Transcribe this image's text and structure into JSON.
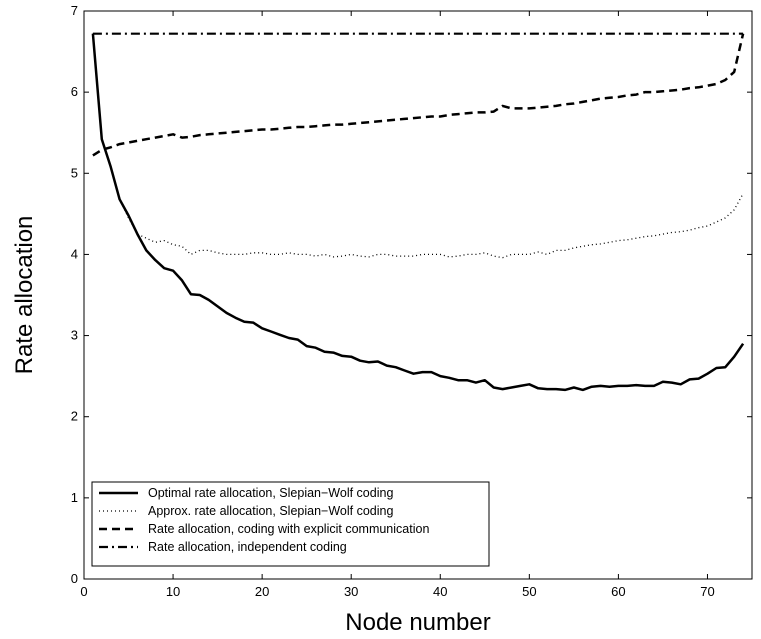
{
  "chart_data": {
    "type": "line",
    "title": "",
    "xlabel": "Node number",
    "ylabel": "Rate allocation",
    "xlim": [
      0,
      75
    ],
    "ylim": [
      0,
      7
    ],
    "xticks": [
      "0",
      "10",
      "20",
      "30",
      "40",
      "50",
      "60",
      "70"
    ],
    "yticks": [
      "0",
      "1",
      "2",
      "3",
      "4",
      "5",
      "6",
      "7"
    ],
    "grid": false,
    "legend_position": "bottom-left",
    "x": [
      1,
      2,
      3,
      4,
      5,
      6,
      7,
      8,
      9,
      10,
      11,
      12,
      13,
      14,
      15,
      16,
      17,
      18,
      19,
      20,
      21,
      22,
      23,
      24,
      25,
      26,
      27,
      28,
      29,
      30,
      31,
      32,
      33,
      34,
      35,
      36,
      37,
      38,
      39,
      40,
      41,
      42,
      43,
      44,
      45,
      46,
      47,
      48,
      49,
      50,
      51,
      52,
      53,
      54,
      55,
      56,
      57,
      58,
      59,
      60,
      61,
      62,
      63,
      64,
      65,
      66,
      67,
      68,
      69,
      70,
      71,
      72,
      73,
      74
    ],
    "series": [
      {
        "name": "Optimal rate allocation, Slepian−Wolf coding",
        "line_style": "solid",
        "values": [
          6.72,
          5.42,
          5.08,
          4.68,
          4.48,
          4.25,
          4.05,
          3.93,
          3.83,
          3.8,
          3.68,
          3.51,
          3.5,
          3.44,
          3.36,
          3.28,
          3.22,
          3.17,
          3.16,
          3.09,
          3.05,
          3.01,
          2.97,
          2.95,
          2.87,
          2.85,
          2.8,
          2.79,
          2.75,
          2.74,
          2.69,
          2.67,
          2.68,
          2.63,
          2.61,
          2.57,
          2.53,
          2.55,
          2.55,
          2.5,
          2.48,
          2.45,
          2.45,
          2.42,
          2.45,
          2.36,
          2.34,
          2.36,
          2.38,
          2.4,
          2.35,
          2.34,
          2.34,
          2.33,
          2.36,
          2.33,
          2.37,
          2.38,
          2.37,
          2.38,
          2.38,
          2.39,
          2.38,
          2.38,
          2.43,
          2.42,
          2.4,
          2.46,
          2.47,
          2.53,
          2.6,
          2.61,
          2.74,
          2.9
        ]
      },
      {
        "name": "Approx. rate allocation, Slepian−Wolf coding",
        "line_style": "dotted",
        "values": [
          6.72,
          5.42,
          5.08,
          4.68,
          4.45,
          4.25,
          4.2,
          4.15,
          4.17,
          4.12,
          4.1,
          4.0,
          4.05,
          4.05,
          4.02,
          4.0,
          4.0,
          4.0,
          4.02,
          4.02,
          4.0,
          4.0,
          4.02,
          4.0,
          4.0,
          3.98,
          4.0,
          3.97,
          3.98,
          4.0,
          3.98,
          3.97,
          4.0,
          4.0,
          3.98,
          3.98,
          3.98,
          4.0,
          4.0,
          4.0,
          3.97,
          3.98,
          4.0,
          4.0,
          4.02,
          3.98,
          3.96,
          4.0,
          4.0,
          4.0,
          4.03,
          4.0,
          4.05,
          4.05,
          4.08,
          4.1,
          4.12,
          4.13,
          4.15,
          4.17,
          4.18,
          4.2,
          4.22,
          4.23,
          4.25,
          4.27,
          4.28,
          4.3,
          4.33,
          4.35,
          4.4,
          4.45,
          4.55,
          4.75
        ]
      },
      {
        "name": "Rate allocation, coding with explicit communication",
        "line_style": "dashed",
        "values": [
          5.22,
          5.29,
          5.32,
          5.36,
          5.38,
          5.4,
          5.42,
          5.44,
          5.46,
          5.48,
          5.44,
          5.45,
          5.47,
          5.48,
          5.49,
          5.5,
          5.51,
          5.52,
          5.53,
          5.54,
          5.54,
          5.55,
          5.56,
          5.57,
          5.57,
          5.58,
          5.59,
          5.6,
          5.6,
          5.61,
          5.62,
          5.63,
          5.64,
          5.65,
          5.66,
          5.67,
          5.68,
          5.69,
          5.7,
          5.7,
          5.72,
          5.73,
          5.74,
          5.75,
          5.75,
          5.76,
          5.83,
          5.8,
          5.8,
          5.8,
          5.81,
          5.82,
          5.83,
          5.85,
          5.86,
          5.88,
          5.9,
          5.92,
          5.93,
          5.94,
          5.96,
          5.97,
          6.0,
          6.0,
          6.01,
          6.02,
          6.03,
          6.05,
          6.06,
          6.08,
          6.1,
          6.15,
          6.25,
          6.72
        ]
      },
      {
        "name": "Rate allocation, independent coding",
        "line_style": "dashdot",
        "values": [
          6.72,
          6.72,
          6.72,
          6.72,
          6.72,
          6.72,
          6.72,
          6.72,
          6.72,
          6.72,
          6.72,
          6.72,
          6.72,
          6.72,
          6.72,
          6.72,
          6.72,
          6.72,
          6.72,
          6.72,
          6.72,
          6.72,
          6.72,
          6.72,
          6.72,
          6.72,
          6.72,
          6.72,
          6.72,
          6.72,
          6.72,
          6.72,
          6.72,
          6.72,
          6.72,
          6.72,
          6.72,
          6.72,
          6.72,
          6.72,
          6.72,
          6.72,
          6.72,
          6.72,
          6.72,
          6.72,
          6.72,
          6.72,
          6.72,
          6.72,
          6.72,
          6.72,
          6.72,
          6.72,
          6.72,
          6.72,
          6.72,
          6.72,
          6.72,
          6.72,
          6.72,
          6.72,
          6.72,
          6.72,
          6.72,
          6.72,
          6.72,
          6.72,
          6.72,
          6.72,
          6.72,
          6.72,
          6.72,
          6.72
        ]
      }
    ]
  }
}
